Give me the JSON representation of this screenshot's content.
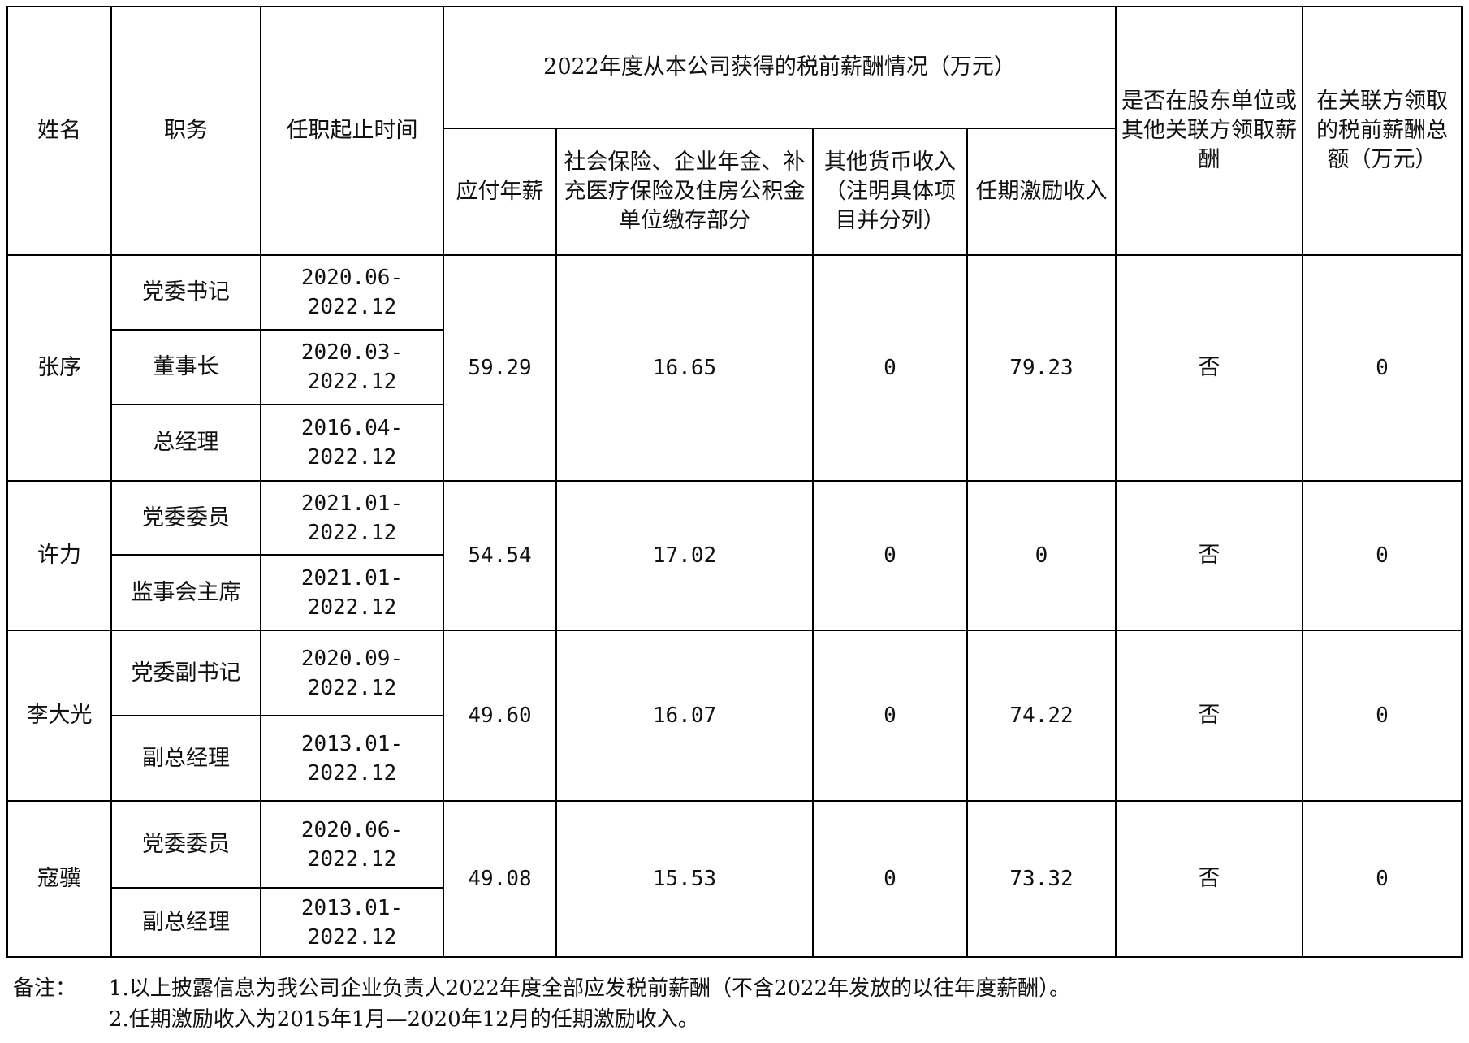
{
  "headers": {
    "name": "姓名",
    "position": "职务",
    "term": "任职起止时间",
    "group": "2022年度从本公司获得的税前薪酬情况（万元）",
    "annual_salary": "应付年薪",
    "social_insurance": "社会保险、企业年金、补充医疗保险及住房公积金单位缴存部分",
    "other_income": "其他货币收入（注明具体项目并分列）",
    "term_incentive": "任期激励收入",
    "shareholder_pay": "是否在股东单位或其他关联方领取薪酬",
    "related_total": "在关联方领取的税前薪酬总额（万元）"
  },
  "people": [
    {
      "name": "张序",
      "roles": [
        {
          "position": "党委书记",
          "term": "2020.06-2022.12"
        },
        {
          "position": "董事长",
          "term": "2020.03-2022.12"
        },
        {
          "position": "总经理",
          "term": "2016.04-2022.12"
        }
      ],
      "annual_salary": "59.29",
      "social_insurance": "16.65",
      "other_income": "0",
      "term_incentive": "79.23",
      "shareholder_pay": "否",
      "related_total": "0"
    },
    {
      "name": "许力",
      "roles": [
        {
          "position": "党委委员",
          "term": "2021.01-2022.12"
        },
        {
          "position": "监事会主席",
          "term": "2021.01-2022.12"
        }
      ],
      "annual_salary": "54.54",
      "social_insurance": "17.02",
      "other_income": "0",
      "term_incentive": "0",
      "shareholder_pay": "否",
      "related_total": "0"
    },
    {
      "name": "李大光",
      "roles": [
        {
          "position": "党委副书记",
          "term": "2020.09-2022.12"
        },
        {
          "position": "副总经理",
          "term": "2013.01-2022.12"
        }
      ],
      "annual_salary": "49.60",
      "social_insurance": "16.07",
      "other_income": "0",
      "term_incentive": "74.22",
      "shareholder_pay": "否",
      "related_total": "0"
    },
    {
      "name": "寇骥",
      "roles": [
        {
          "position": "党委委员",
          "term": "2020.06-2022.12"
        },
        {
          "position": "副总经理",
          "term": "2013.01-2022.12"
        }
      ],
      "annual_salary": "49.08",
      "social_insurance": "15.53",
      "other_income": "0",
      "term_incentive": "73.32",
      "shareholder_pay": "否",
      "related_total": "0"
    }
  ],
  "notes": {
    "label": "备注：",
    "lines": [
      "1.以上披露信息为我公司企业负责人2022年度全部应发税前薪酬（不含2022年发放的以往年度薪酬）。",
      "2.任期激励收入为2015年1月—2020年12月的任期激励收入。"
    ]
  }
}
